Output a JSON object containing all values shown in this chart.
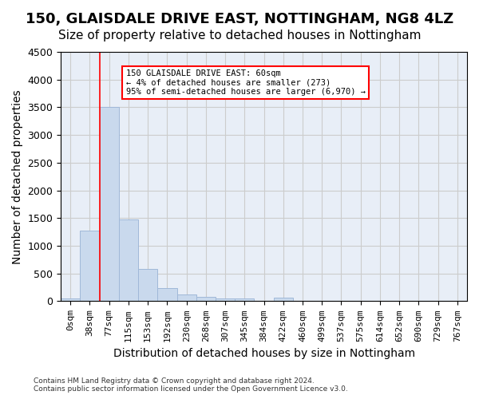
{
  "title": "150, GLAISDALE DRIVE EAST, NOTTINGHAM, NG8 4LZ",
  "subtitle": "Size of property relative to detached houses in Nottingham",
  "xlabel": "Distribution of detached houses by size in Nottingham",
  "ylabel": "Number of detached properties",
  "bar_color": "#c9d9ed",
  "bar_edge_color": "#a0b8d8",
  "bar_values": [
    50,
    1270,
    3500,
    1480,
    580,
    240,
    115,
    80,
    55,
    55,
    0,
    60,
    0,
    0,
    0,
    0,
    0,
    0,
    0,
    0,
    0
  ],
  "x_labels": [
    "0sqm",
    "38sqm",
    "77sqm",
    "115sqm",
    "153sqm",
    "192sqm",
    "230sqm",
    "268sqm",
    "307sqm",
    "345sqm",
    "384sqm",
    "422sqm",
    "460sqm",
    "499sqm",
    "537sqm",
    "575sqm",
    "614sqm",
    "652sqm",
    "690sqm",
    "729sqm",
    "767sqm"
  ],
  "ylim": [
    0,
    4500
  ],
  "yticks": [
    0,
    500,
    1000,
    1500,
    2000,
    2500,
    3000,
    3500,
    4000,
    4500
  ],
  "red_line_x": 1.5,
  "annotation_title": "150 GLAISDALE DRIVE EAST: 60sqm",
  "annotation_line1": "← 4% of detached houses are smaller (273)",
  "annotation_line2": "95% of semi-detached houses are larger (6,970) →",
  "footer1": "Contains HM Land Registry data © Crown copyright and database right 2024.",
  "footer2": "Contains public sector information licensed under the Open Government Licence v3.0.",
  "background_color": "#ffffff",
  "ax_facecolor": "#e8eef7",
  "grid_color": "#cccccc",
  "title_fontsize": 13,
  "subtitle_fontsize": 11,
  "axis_label_fontsize": 10,
  "tick_fontsize": 8
}
